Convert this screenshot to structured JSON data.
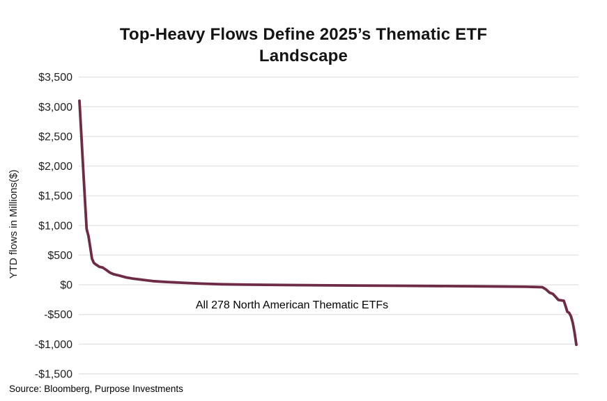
{
  "title": {
    "text": "Top-Heavy Flows Define 2025’s Thematic ETF Landscape"
  },
  "y_axis": {
    "title": "YTD flows in Millions($)",
    "tick_labels": [
      "$3,500",
      "$3,000",
      "$2,500",
      "$2,000",
      "$1,500",
      "$1,000",
      "$500",
      "$0",
      "-$500",
      "-$1,000",
      "-$1,500"
    ],
    "tick_values": [
      3500,
      3000,
      2500,
      2000,
      1500,
      1000,
      500,
      0,
      -500,
      -1000,
      -1500
    ]
  },
  "annotation": {
    "text": "All 278 North American Thematic ETFs"
  },
  "source": {
    "text": "Source: Bloomberg, Purpose Investments"
  },
  "colors": {
    "line": "#6E2B46",
    "gridline": "#E4E4E4",
    "title_text": "#141414",
    "tick_text": "#1F1F1F"
  },
  "chart_data": {
    "type": "line",
    "title": "Top-Heavy Flows Define 2025’s Thematic ETF Landscape",
    "xlabel": "",
    "ylabel": "YTD flows in Millions($)",
    "ylim": [
      -1500,
      3500
    ],
    "x_range": [
      1,
      278
    ],
    "x_description": "278 North American thematic ETFs ranked by YTD flows, largest inflow to largest outflow",
    "annotation": "All 278 North American Thematic ETFs",
    "grid": "horizontal-only",
    "legend": "none",
    "line_color": "#6E2B46",
    "series": [
      {
        "name": "YTD flows ($M) by ETF rank",
        "points_rank_value": [
          [
            1,
            3100
          ],
          [
            2,
            2550
          ],
          [
            3,
            2010
          ],
          [
            4,
            1470
          ],
          [
            5,
            940
          ],
          [
            6,
            825
          ],
          [
            7,
            640
          ],
          [
            8,
            440
          ],
          [
            9,
            371
          ],
          [
            10,
            345
          ],
          [
            12,
            305
          ],
          [
            14,
            290
          ],
          [
            16,
            250
          ],
          [
            18,
            205
          ],
          [
            20,
            178
          ],
          [
            23,
            157
          ],
          [
            27,
            125
          ],
          [
            31,
            104
          ],
          [
            36,
            85
          ],
          [
            42,
            62
          ],
          [
            50,
            47
          ],
          [
            58,
            35
          ],
          [
            69,
            20
          ],
          [
            80,
            10
          ],
          [
            95,
            3
          ],
          [
            115,
            -3
          ],
          [
            140,
            -9
          ],
          [
            180,
            -16
          ],
          [
            220,
            -25
          ],
          [
            250,
            -33
          ],
          [
            259,
            -40
          ],
          [
            261,
            -75
          ],
          [
            263,
            -130
          ],
          [
            265,
            -155
          ],
          [
            267,
            -220
          ],
          [
            268,
            -255
          ],
          [
            271,
            -268
          ],
          [
            272,
            -360
          ],
          [
            273,
            -455
          ],
          [
            274,
            -472
          ],
          [
            275,
            -530
          ],
          [
            276,
            -640
          ],
          [
            277,
            -800
          ],
          [
            278,
            -1010
          ]
        ]
      }
    ]
  }
}
